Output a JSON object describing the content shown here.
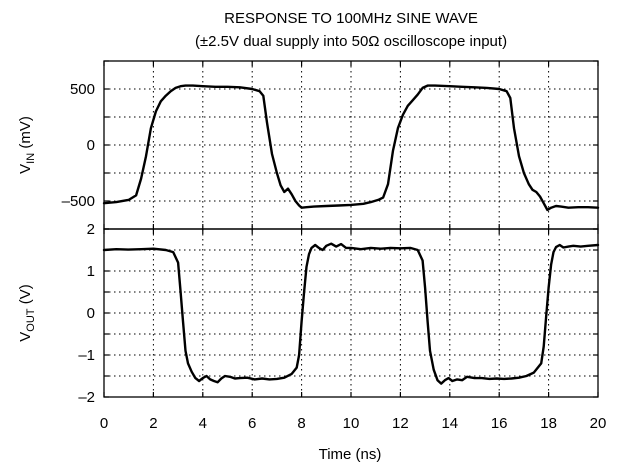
{
  "chart_data": {
    "type": "line",
    "title": "RESPONSE TO 100MHz SINE WAVE",
    "subtitle": "(±2.5V dual supply into 50Ω oscilloscope input)",
    "xlabel": "Time (ns)",
    "xlim": [
      0,
      20
    ],
    "x_ticks": [
      "0",
      "2",
      "4",
      "6",
      "8",
      "10",
      "12",
      "14",
      "16",
      "18",
      "20"
    ],
    "x_tick_values": [
      0,
      2,
      4,
      6,
      8,
      10,
      12,
      14,
      16,
      18,
      20
    ],
    "grid": true,
    "panels": [
      {
        "ylabel_main": "V",
        "ylabel_sub": "IN",
        "ylabel_unit": " (mV)",
        "ylim": [
          -750,
          750
        ],
        "y_ticks": [
          "500",
          "0",
          "–500"
        ],
        "y_tick_values": [
          500,
          0,
          -500
        ],
        "y_grid_values": [
          750,
          500,
          250,
          0,
          -250,
          -500,
          -750
        ],
        "series": [
          {
            "x": [
              0,
              0.5,
              1.0,
              1.3,
              1.5,
              1.7,
              1.9,
              2.1,
              2.3,
              2.5,
              2.7,
              2.9,
              3.1,
              3.3,
              3.6,
              4.0,
              4.5,
              5.0,
              5.5,
              6.0,
              6.3,
              6.45,
              6.6,
              6.8,
              7.0,
              7.15,
              7.3,
              7.45,
              7.6,
              7.75,
              7.9,
              8.0,
              8.2,
              8.5,
              9.0,
              9.5,
              10.0,
              10.5,
              10.8,
              11.1,
              11.3,
              11.5,
              11.7,
              11.9,
              12.1,
              12.3,
              12.5,
              12.7,
              12.9,
              13.1,
              13.4,
              14.0,
              14.5,
              15.0,
              15.5,
              16.0,
              16.3,
              16.45,
              16.6,
              16.8,
              17.0,
              17.2,
              17.35,
              17.5,
              17.65,
              17.8,
              17.95,
              18.1,
              18.3,
              18.5,
              18.8,
              19.2,
              19.6,
              20.0
            ],
            "values": [
              -520,
              -510,
              -490,
              -450,
              -300,
              -100,
              150,
              300,
              390,
              440,
              480,
              510,
              525,
              530,
              530,
              525,
              520,
              520,
              515,
              500,
              480,
              440,
              200,
              -80,
              -250,
              -360,
              -420,
              -390,
              -440,
              -500,
              -540,
              -560,
              -555,
              -550,
              -545,
              -540,
              -535,
              -525,
              -510,
              -490,
              -470,
              -350,
              -50,
              150,
              270,
              350,
              400,
              450,
              510,
              530,
              530,
              525,
              520,
              515,
              510,
              500,
              480,
              420,
              150,
              -100,
              -250,
              -350,
              -400,
              -420,
              -460,
              -520,
              -580,
              -560,
              -545,
              -550,
              -560,
              -555,
              -555,
              -560
            ]
          }
        ]
      },
      {
        "ylabel_main": "V",
        "ylabel_sub": "OUT",
        "ylabel_unit": " (V)",
        "ylim": [
          -2,
          2
        ],
        "y_ticks": [
          "2",
          "1",
          "0",
          "–1",
          "–2"
        ],
        "y_tick_values": [
          2,
          1,
          0,
          -1,
          -2
        ],
        "y_grid_values": [
          2,
          1.5,
          1,
          0.5,
          0,
          -0.5,
          -1,
          -1.5,
          -2
        ],
        "series": [
          {
            "x": [
              0,
              0.5,
              1.0,
              1.5,
              2.0,
              2.5,
              2.8,
              3.0,
              3.1,
              3.2,
              3.3,
              3.4,
              3.55,
              3.7,
              3.85,
              4.0,
              4.15,
              4.3,
              4.45,
              4.6,
              4.75,
              4.9,
              5.1,
              5.3,
              5.5,
              5.8,
              6.1,
              6.4,
              6.7,
              7.0,
              7.3,
              7.6,
              7.8,
              7.9,
              8.0,
              8.1,
              8.2,
              8.3,
              8.4,
              8.55,
              8.7,
              8.85,
              9.0,
              9.2,
              9.4,
              9.6,
              9.8,
              10.0,
              10.4,
              10.8,
              11.2,
              11.6,
              12.0,
              12.4,
              12.7,
              12.9,
              13.0,
              13.1,
              13.2,
              13.35,
              13.5,
              13.65,
              13.8,
              13.95,
              14.1,
              14.3,
              14.5,
              14.7,
              15.0,
              15.3,
              15.6,
              15.9,
              16.2,
              16.5,
              16.8,
              17.1,
              17.4,
              17.7,
              17.8,
              17.9,
              18.0,
              18.1,
              18.2,
              18.3,
              18.45,
              18.6,
              18.8,
              19.0,
              19.3,
              19.6,
              20.0
            ],
            "values": [
              1.5,
              1.52,
              1.51,
              1.52,
              1.53,
              1.5,
              1.45,
              1.2,
              0.5,
              -0.2,
              -0.9,
              -1.2,
              -1.4,
              -1.55,
              -1.62,
              -1.55,
              -1.5,
              -1.58,
              -1.62,
              -1.65,
              -1.56,
              -1.5,
              -1.52,
              -1.56,
              -1.55,
              -1.54,
              -1.58,
              -1.56,
              -1.58,
              -1.57,
              -1.54,
              -1.45,
              -1.3,
              -1.0,
              -0.2,
              0.5,
              1.1,
              1.4,
              1.55,
              1.62,
              1.55,
              1.5,
              1.6,
              1.65,
              1.58,
              1.64,
              1.55,
              1.55,
              1.52,
              1.55,
              1.53,
              1.55,
              1.54,
              1.55,
              1.5,
              1.25,
              0.6,
              -0.2,
              -0.9,
              -1.35,
              -1.6,
              -1.68,
              -1.6,
              -1.55,
              -1.62,
              -1.58,
              -1.6,
              -1.52,
              -1.55,
              -1.55,
              -1.57,
              -1.56,
              -1.57,
              -1.56,
              -1.54,
              -1.5,
              -1.42,
              -1.2,
              -0.8,
              -0.1,
              0.6,
              1.15,
              1.45,
              1.57,
              1.62,
              1.56,
              1.58,
              1.6,
              1.58,
              1.6,
              1.62
            ]
          }
        ]
      }
    ]
  }
}
